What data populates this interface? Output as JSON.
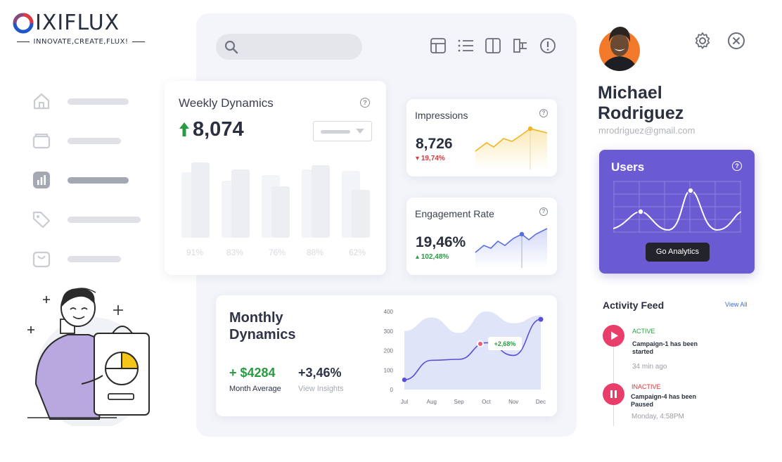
{
  "brand": {
    "name": "IXIFLUX",
    "tagline": "INNOVATE,CREATE,FLUX!",
    "accent_blue": "#1f57c8",
    "accent_red": "#e03a3e"
  },
  "sidebar": {
    "items": [
      {
        "icon": "home-icon"
      },
      {
        "icon": "folder-icon"
      },
      {
        "icon": "analytics-icon",
        "active": true
      },
      {
        "icon": "tag-icon"
      },
      {
        "icon": "shopping-bag-icon"
      }
    ]
  },
  "search": {
    "placeholder": "",
    "icon": "search-icon"
  },
  "toolbar": {
    "icons": [
      "grid-view-icon",
      "list-view-icon",
      "split-view-icon",
      "flow-icon",
      "info-icon"
    ]
  },
  "weekly": {
    "title": "Weekly Dynamics",
    "value": "8,074",
    "bar_labels": [
      "91%",
      "83%",
      "76%",
      "88%",
      "62%"
    ]
  },
  "impressions": {
    "title": "Impressions",
    "value": "8,726",
    "change": "19,74%",
    "color": "#f3b422"
  },
  "engagement": {
    "title": "Engagement Rate",
    "value": "19,46%",
    "change": "102,48%",
    "color": "#5b6ee0"
  },
  "monthly": {
    "title": "Monthly Dynamics",
    "amount": "+ $4284",
    "amount_label": "Month Average",
    "percent": "+3,46%",
    "percent_label": "View Insights",
    "badge": "+2,68%"
  },
  "chart_data": {
    "type": "area",
    "categories": [
      "Jul",
      "Aug",
      "Sep",
      "Oct",
      "Nov",
      "Dec"
    ],
    "series": [
      {
        "values": [
          50,
          150,
          155,
          240,
          175,
          360
        ]
      },
      {
        "values": [
          300,
          370,
          290,
          400,
          340,
          380
        ]
      }
    ],
    "yticks": [
      0,
      100,
      200,
      300,
      400
    ],
    "ylim": [
      0,
      400
    ],
    "annotation": "+2,68%"
  },
  "profile": {
    "first_name": "Michael",
    "last_name": "Rodriguez",
    "email": "mrodriguez@gmail.com"
  },
  "users_card": {
    "title": "Users",
    "button": "Go Analytics",
    "color": "#6b5bd2"
  },
  "activity": {
    "title": "Activity Feed",
    "view_all": "View All",
    "items": [
      {
        "status": "ACTIVE",
        "text": "Campaign-1 has been started",
        "time": "34  min ago",
        "icon": "play-icon"
      },
      {
        "status": "INACTIVE",
        "text": "Campaign-4 has been Paused",
        "time": "Monday, 4:58PM",
        "icon": "pause-icon"
      }
    ]
  }
}
